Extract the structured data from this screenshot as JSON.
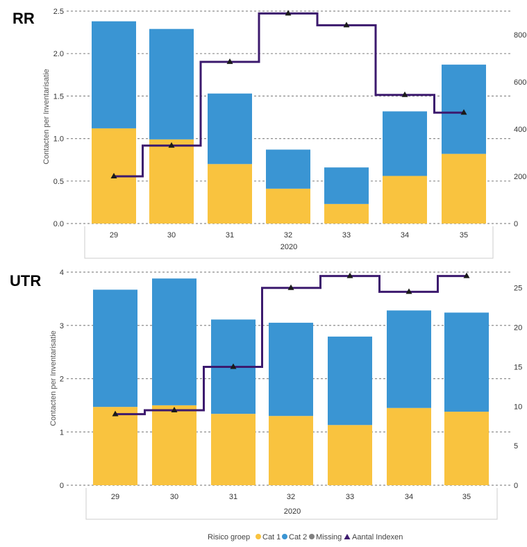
{
  "colors": {
    "cat1": "#F9C33F",
    "cat2": "#3A95D3",
    "missing": "#808080",
    "line": "#3C1A6E",
    "grid": "#8c8c8c"
  },
  "legend": {
    "title": "Risico groep",
    "items": [
      {
        "label": "Cat 1",
        "marker": "circle",
        "color": "#F9C33F"
      },
      {
        "label": "Cat 2",
        "marker": "circle",
        "color": "#3A95D3"
      },
      {
        "label": "Missing",
        "marker": "circle",
        "color": "#808080"
      },
      {
        "label": "Aantal Indexen",
        "marker": "triangle",
        "color": "#3C1A6E"
      }
    ]
  },
  "chart_data": [
    {
      "type": "bar",
      "panel_label": "RR",
      "stacked": true,
      "categories": [
        "29",
        "30",
        "31",
        "32",
        "33",
        "34",
        "35"
      ],
      "category_group_label": "2020",
      "ylabel": "Contacten per Inventarisatie",
      "ylim": [
        0,
        2.5
      ],
      "yticks": [
        "0.0",
        "0.5",
        "1.0",
        "1.5",
        "2.0",
        "2.5"
      ],
      "y2lim": [
        0,
        900
      ],
      "y2ticks": [
        "0",
        "200",
        "400",
        "600",
        "800"
      ],
      "series": [
        {
          "name": "Cat 1",
          "values": [
            1.12,
            0.99,
            0.7,
            0.41,
            0.23,
            0.56,
            0.82
          ]
        },
        {
          "name": "Cat 2",
          "values": [
            1.26,
            1.3,
            0.83,
            0.46,
            0.43,
            0.76,
            1.05
          ]
        }
      ],
      "line_series": {
        "name": "Aantal Indexen",
        "axis": "right",
        "step": true,
        "values": [
          200,
          330,
          685,
          890,
          840,
          545,
          470
        ]
      },
      "grid": true
    },
    {
      "type": "bar",
      "panel_label": "UTR",
      "stacked": true,
      "categories": [
        "29",
        "30",
        "31",
        "32",
        "33",
        "34",
        "35"
      ],
      "category_group_label": "2020",
      "ylabel": "Contacten per Inventarisatie",
      "ylim": [
        0,
        4
      ],
      "yticks": [
        "0",
        "1",
        "2",
        "3",
        "4"
      ],
      "y2lim": [
        0,
        27
      ],
      "y2ticks": [
        "0",
        "5",
        "10",
        "15",
        "20",
        "25"
      ],
      "series": [
        {
          "name": "Cat 1",
          "values": [
            1.47,
            1.5,
            1.34,
            1.3,
            1.13,
            1.45,
            1.38
          ]
        },
        {
          "name": "Cat 2",
          "values": [
            2.2,
            2.38,
            1.77,
            1.75,
            1.66,
            1.83,
            1.86
          ]
        }
      ],
      "line_series": {
        "name": "Aantal Indexen",
        "axis": "right",
        "step": true,
        "values": [
          9,
          9.5,
          15,
          25,
          26.5,
          24.5,
          26.5
        ]
      },
      "grid": true
    }
  ]
}
